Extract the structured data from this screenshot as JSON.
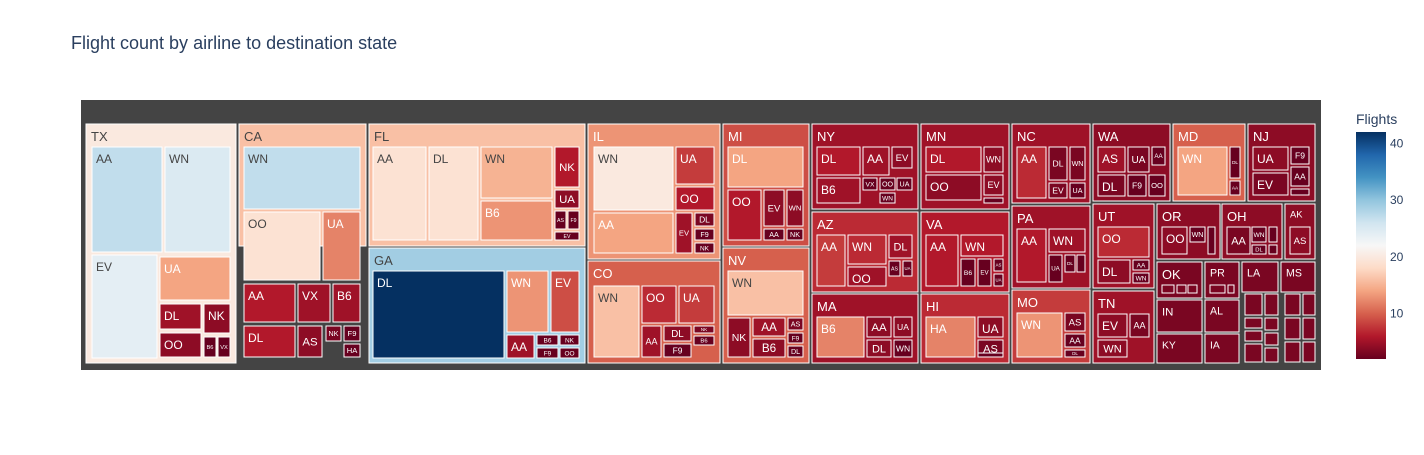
{
  "chart_data": {
    "type": "treemap",
    "title": "Flight count by airline to destination state",
    "colorbar": {
      "title": "Flights",
      "ticks": [
        10,
        20,
        30,
        40
      ],
      "range": [
        2,
        42
      ],
      "colorscale": [
        "#67001f",
        "#b2182b",
        "#d6604d",
        "#f4a582",
        "#fddbc7",
        "#f7f7f7",
        "#d1e5f0",
        "#92c5de",
        "#4393c3",
        "#2166ac",
        "#053061"
      ]
    },
    "root": {
      "label": "",
      "color": "#444444"
    },
    "states": [
      {
        "label": "TX",
        "value": 20,
        "children": [
          {
            "label": "AA",
            "value": 27
          },
          {
            "label": "WN",
            "value": 25
          },
          {
            "label": "EV",
            "value": 24
          },
          {
            "label": "UA",
            "value": 14
          },
          {
            "label": "DL",
            "value": 5
          },
          {
            "label": "NK",
            "value": 4
          },
          {
            "label": "OO",
            "value": 4
          },
          {
            "label": "B6",
            "value": 2
          },
          {
            "label": "VX",
            "value": 2
          }
        ]
      },
      {
        "label": "CA",
        "value": 16,
        "children": [
          {
            "label": "WN",
            "value": 27
          },
          {
            "label": "OO",
            "value": 19
          },
          {
            "label": "UA",
            "value": 12
          },
          {
            "label": "AA",
            "value": 6
          },
          {
            "label": "VX",
            "value": 5
          },
          {
            "label": "B6",
            "value": 5
          },
          {
            "label": "DL",
            "value": 6
          },
          {
            "label": "AS",
            "value": 4
          },
          {
            "label": "NK",
            "value": 3
          },
          {
            "label": "F9",
            "value": 2
          },
          {
            "label": "HA",
            "value": 2
          }
        ]
      },
      {
        "label": "FL",
        "value": 16,
        "children": [
          {
            "label": "AA",
            "value": 19
          },
          {
            "label": "DL",
            "value": 19
          },
          {
            "label": "WN",
            "value": 15
          },
          {
            "label": "NK",
            "value": 6
          },
          {
            "label": "B6",
            "value": 13
          },
          {
            "label": "UA",
            "value": 4
          },
          {
            "label": "AS",
            "value": 2
          },
          {
            "label": "F9",
            "value": 2
          },
          {
            "label": "EV",
            "value": 2
          }
        ]
      },
      {
        "label": "GA",
        "value": 29,
        "children": [
          {
            "label": "DL",
            "value": 42
          },
          {
            "label": "WN",
            "value": 13
          },
          {
            "label": "EV",
            "value": 9
          },
          {
            "label": "AA",
            "value": 5
          },
          {
            "label": "B6",
            "value": 2
          },
          {
            "label": "NK",
            "value": 2
          },
          {
            "label": "F9",
            "value": 2
          },
          {
            "label": "OO",
            "value": 2
          }
        ]
      },
      {
        "label": "IL",
        "value": 13,
        "children": [
          {
            "label": "WN",
            "value": 20
          },
          {
            "label": "UA",
            "value": 8
          },
          {
            "label": "OO",
            "value": 6
          },
          {
            "label": "AA",
            "value": 14
          },
          {
            "label": "EV",
            "value": 5
          },
          {
            "label": "DL",
            "value": 3
          },
          {
            "label": "F9",
            "value": 2
          },
          {
            "label": "NK",
            "value": 2
          }
        ]
      },
      {
        "label": "CO",
        "value": 10,
        "children": [
          {
            "label": "WN",
            "value": 16
          },
          {
            "label": "OO",
            "value": 7
          },
          {
            "label": "UA",
            "value": 8
          },
          {
            "label": "AA",
            "value": 5
          },
          {
            "label": "DL",
            "value": 4
          },
          {
            "label": "NK",
            "value": 3
          },
          {
            "label": "F9",
            "value": 2
          },
          {
            "label": "B6",
            "value": 2
          }
        ]
      },
      {
        "label": "MI",
        "value": 9,
        "children": [
          {
            "label": "DL",
            "value": 14
          },
          {
            "label": "OO",
            "value": 6
          },
          {
            "label": "EV",
            "value": 4
          },
          {
            "label": "WN",
            "value": 4
          },
          {
            "label": "AA",
            "value": 2
          },
          {
            "label": "NK",
            "value": 2
          }
        ]
      },
      {
        "label": "NV",
        "value": 10,
        "children": [
          {
            "label": "WN",
            "value": 16
          },
          {
            "label": "NK",
            "value": 4
          },
          {
            "label": "AA",
            "value": 5
          },
          {
            "label": "AS",
            "value": 3
          },
          {
            "label": "B6",
            "value": 4
          },
          {
            "label": "F9",
            "value": 2
          },
          {
            "label": "DL",
            "value": 2
          }
        ]
      },
      {
        "label": "NY",
        "value": 5,
        "children": [
          {
            "label": "DL",
            "value": 6
          },
          {
            "label": "AA",
            "value": 5
          },
          {
            "label": "EV",
            "value": 4
          },
          {
            "label": "B6",
            "value": 5
          },
          {
            "label": "VX",
            "value": 2
          },
          {
            "label": "OO",
            "value": 2
          },
          {
            "label": "UA",
            "value": 2
          },
          {
            "label": "WN",
            "value": 2
          }
        ]
      },
      {
        "label": "AZ",
        "value": 7,
        "children": [
          {
            "label": "AA",
            "value": 8
          },
          {
            "label": "WN",
            "value": 7
          },
          {
            "label": "DL",
            "value": 5
          },
          {
            "label": "OO",
            "value": 5
          },
          {
            "label": "AS",
            "value": 2
          },
          {
            "label": "UA",
            "value": 2
          }
        ]
      },
      {
        "label": "MA",
        "value": 5,
        "children": [
          {
            "label": "B6",
            "value": 12
          },
          {
            "label": "AA",
            "value": 4
          },
          {
            "label": "UA",
            "value": 4
          },
          {
            "label": "DL",
            "value": 4
          },
          {
            "label": "WN",
            "value": 2
          }
        ]
      },
      {
        "label": "MN",
        "value": 5,
        "children": [
          {
            "label": "DL",
            "value": 6
          },
          {
            "label": "WN",
            "value": 4
          },
          {
            "label": "OO",
            "value": 4
          },
          {
            "label": "EV",
            "value": 4
          },
          {
            "label": "UA",
            "value": 2
          }
        ]
      },
      {
        "label": "VA",
        "value": 6,
        "children": [
          {
            "label": "AA",
            "value": 6
          },
          {
            "label": "WN",
            "value": 6
          },
          {
            "label": "B6",
            "value": 2
          },
          {
            "label": "EV",
            "value": 2
          },
          {
            "label": "AS",
            "value": 2
          },
          {
            "label": "UA",
            "value": 2
          }
        ]
      },
      {
        "label": "HI",
        "value": 7,
        "children": [
          {
            "label": "HA",
            "value": 12
          },
          {
            "label": "UA",
            "value": 4
          },
          {
            "label": "AS",
            "value": 3
          },
          {
            "label": "DL",
            "value": 2
          }
        ]
      },
      {
        "label": "NC",
        "value": 5,
        "children": [
          {
            "label": "AA",
            "value": 7
          },
          {
            "label": "DL",
            "value": 3
          },
          {
            "label": "WN",
            "value": 3
          },
          {
            "label": "EV",
            "value": 3
          },
          {
            "label": "UA",
            "value": 2
          }
        ]
      },
      {
        "label": "PA",
        "value": 5,
        "children": [
          {
            "label": "AA",
            "value": 6
          },
          {
            "label": "WN",
            "value": 5
          },
          {
            "label": "UA",
            "value": 2
          },
          {
            "label": "DL",
            "value": 2
          },
          {
            "label": "EV",
            "value": 2
          }
        ]
      },
      {
        "label": "MO",
        "value": 8,
        "children": [
          {
            "label": "WN",
            "value": 13
          },
          {
            "label": "AS",
            "value": 3
          },
          {
            "label": "AA",
            "value": 2
          },
          {
            "label": "DL",
            "value": 2
          }
        ]
      },
      {
        "label": "WA",
        "value": 4,
        "children": [
          {
            "label": "AS",
            "value": 5
          },
          {
            "label": "UA",
            "value": 3
          },
          {
            "label": "AA",
            "value": 2
          },
          {
            "label": "DL",
            "value": 3
          },
          {
            "label": "F9",
            "value": 2
          },
          {
            "label": "OO",
            "value": 2
          }
        ]
      },
      {
        "label": "UT",
        "value": 5,
        "children": [
          {
            "label": "OO",
            "value": 7
          },
          {
            "label": "DL",
            "value": 4
          },
          {
            "label": "AA",
            "value": 2
          },
          {
            "label": "WN",
            "value": 2
          }
        ]
      },
      {
        "label": "TN",
        "value": 5,
        "children": [
          {
            "label": "EV",
            "value": 4
          },
          {
            "label": "AA",
            "value": 3
          },
          {
            "label": "WN",
            "value": 4
          },
          {
            "label": "DL",
            "value": 2
          }
        ]
      },
      {
        "label": "MD",
        "value": 10,
        "children": [
          {
            "label": "WN",
            "value": 14
          },
          {
            "label": "DL",
            "value": 2
          },
          {
            "label": "AA",
            "value": 2
          }
        ]
      },
      {
        "label": "NJ",
        "value": 4,
        "children": [
          {
            "label": "UA",
            "value": 4
          },
          {
            "label": "F9",
            "value": 2
          },
          {
            "label": "EV",
            "value": 3
          },
          {
            "label": "AA",
            "value": 2
          },
          {
            "label": "DL",
            "value": 2
          }
        ]
      },
      {
        "label": "OR",
        "value": 4,
        "children": [
          {
            "label": "OO",
            "value": 4
          },
          {
            "label": "WN",
            "value": 2
          },
          {
            "label": "AS",
            "value": 2
          }
        ]
      },
      {
        "label": "OH",
        "value": 4,
        "children": [
          {
            "label": "AA",
            "value": 3
          },
          {
            "label": "WN",
            "value": 2
          },
          {
            "label": "EV",
            "value": 2
          },
          {
            "label": "DL",
            "value": 2
          },
          {
            "label": "UA",
            "value": 2
          }
        ]
      },
      {
        "label": "AK",
        "value": 4,
        "children": [
          {
            "label": "AS",
            "value": 4
          }
        ]
      },
      {
        "label": "OK",
        "value": 3,
        "children": []
      },
      {
        "label": "PR",
        "value": 3,
        "children": []
      },
      {
        "label": "LA",
        "value": 3,
        "children": []
      },
      {
        "label": "MS",
        "value": 3,
        "children": []
      },
      {
        "label": "IN",
        "value": 3,
        "children": []
      },
      {
        "label": "AL",
        "value": 3,
        "children": []
      },
      {
        "label": "KY",
        "value": 3,
        "children": []
      },
      {
        "label": "IA",
        "value": 3,
        "children": []
      }
    ]
  }
}
